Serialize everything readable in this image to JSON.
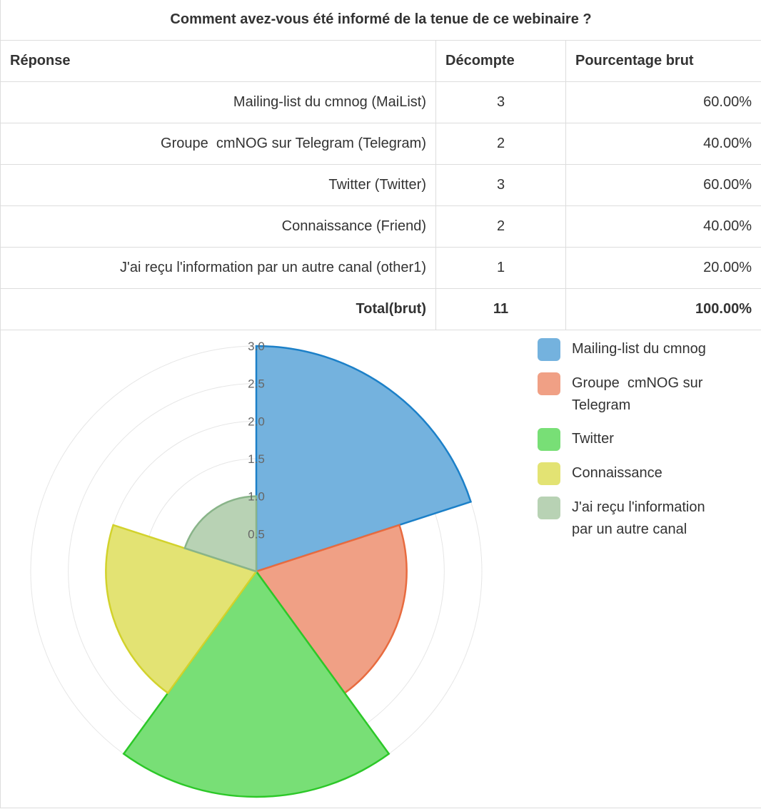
{
  "table": {
    "title": "Comment avez-vous été informé de la tenue de ce webinaire ?",
    "headers": {
      "answer": "Réponse",
      "count": "Décompte",
      "percent": "Pourcentage brut"
    },
    "rows": [
      {
        "answer": "Mailing-list du cmnog (MaiList)",
        "count": "3",
        "percent": "60.00%"
      },
      {
        "answer": "Groupe  cmNOG sur Telegram (Telegram)",
        "count": "2",
        "percent": "40.00%"
      },
      {
        "answer": "Twitter (Twitter)",
        "count": "3",
        "percent": "60.00%"
      },
      {
        "answer": "Connaissance (Friend)",
        "count": "2",
        "percent": "40.00%"
      },
      {
        "answer": "J'ai reçu l'information par un autre canal (other1)",
        "count": "1",
        "percent": "20.00%"
      }
    ],
    "total": {
      "label": "Total(brut)",
      "count": "11",
      "percent": "100.00%"
    }
  },
  "chart_data": {
    "type": "polarArea",
    "categories": [
      "Mailing-list du cmnog",
      "Groupe  cmNOG sur Telegram",
      "Twitter",
      "Connaissance",
      "J'ai reçu l'information par un autre canal"
    ],
    "values": [
      3,
      2,
      3,
      2,
      1
    ],
    "rlim": [
      0,
      3
    ],
    "ticks": [
      "0.5",
      "1.0",
      "1.5",
      "2.0",
      "2.5",
      "3.0"
    ],
    "grid": true,
    "legend_position": "right",
    "colors": {
      "fill": [
        "#74b2de",
        "#f0a085",
        "#78df76",
        "#e3e373",
        "#b8d2b4"
      ],
      "stroke": [
        "#1c80c8",
        "#e86b3f",
        "#2cc828",
        "#d2d22c",
        "#89b489"
      ]
    }
  }
}
